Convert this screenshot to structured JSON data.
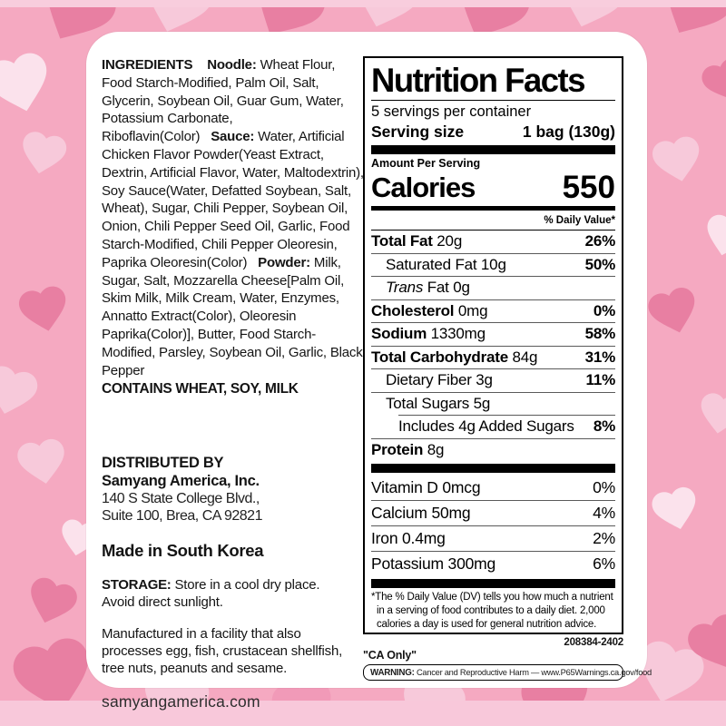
{
  "theme": {
    "background": "#f5a9c1",
    "heart_dark": "#e87fa2",
    "heart_medium": "#f19ab8",
    "heart_light": "#f7c9da",
    "heart_pale": "#fbe2ec",
    "label_bg": "#ffffff",
    "text": "#141414",
    "warning_yellow": "#f5c518"
  },
  "left_column": {
    "ingredients_segments": [
      {
        "t": "INGREDIENTS",
        "b": true
      },
      {
        "t": "    ",
        "b": false
      },
      {
        "t": "Noodle:",
        "b": true
      },
      {
        "t": " Wheat Flour, Food Starch-Modified, Palm Oil, Salt, Glycerin, Soybean Oil, Guar Gum, Water, Potassium Carbonate, Riboflavin(Color)",
        "b": false
      },
      {
        "t": "   ",
        "b": false
      },
      {
        "t": "Sauce:",
        "b": true
      },
      {
        "t": " Water, Artificial Chicken Flavor Powder(Yeast Extract, Dextrin, Artificial Flavor, Water, Maltodextrin), Soy Sauce(Water, Defatted Soybean, Salt, Wheat), Sugar, Chili Pepper, Soybean Oil, Onion, Chili Pepper Seed Oil, Garlic, Food Starch-Modified, Chili Pepper Oleoresin, Paprika Oleoresin(Color)",
        "b": false
      },
      {
        "t": "   ",
        "b": false
      },
      {
        "t": "Powder:",
        "b": true
      },
      {
        "t": " Milk, Sugar, Salt, Mozzarella Cheese[Palm Oil, Skim Milk, Milk Cream, Water, Enzymes, Annatto Extract(Color), Oleoresin Paprika(Color)], Butter, Food Starch-Modified, Parsley, Soybean Oil, Garlic, Black Pepper",
        "b": false
      }
    ],
    "contains": "CONTAINS WHEAT, SOY, MILK",
    "distributed_by_label": "DISTRIBUTED BY",
    "distributor_name": "Samyang America, Inc.",
    "address_line1": "140 S State College Blvd.,",
    "address_line2": "Suite 100, Brea, CA 92821",
    "made_in": "Made in South Korea",
    "storage_label": "STORAGE:",
    "storage_line1": " Store in a cool dry place.",
    "storage_line2": "Avoid direct sunlight.",
    "manufactured": "Manufactured in a facility that also processes egg, fish, crustacean shellfish, tree nuts, peanuts and sesame.",
    "website": "samyangamerica.com"
  },
  "nutrition": {
    "title": "Nutrition Facts",
    "servings_per_container": "5 servings per container",
    "serving_size_label": "Serving size",
    "serving_size_value": "1 bag (130g)",
    "amount_per_serving": "Amount Per Serving",
    "calories_label": "Calories",
    "calories_value": "550",
    "daily_value_header": "% Daily Value*",
    "rows": [
      {
        "name": "Total Fat",
        "amount": "20g",
        "dv": "26%",
        "bold": true,
        "indent": 0,
        "italic": false
      },
      {
        "name": "Saturated Fat",
        "amount": "10g",
        "dv": "50%",
        "bold": false,
        "indent": 1,
        "italic": false
      },
      {
        "name": "Trans Fat",
        "amount": "0g",
        "dv": "",
        "bold": false,
        "indent": 1,
        "italic": true
      },
      {
        "name": "Cholesterol",
        "amount": "0mg",
        "dv": "0%",
        "bold": true,
        "indent": 0,
        "italic": false
      },
      {
        "name": "Sodium",
        "amount": "1330mg",
        "dv": "58%",
        "bold": true,
        "indent": 0,
        "italic": false
      },
      {
        "name": "Total Carbohydrate",
        "amount": "84g",
        "dv": "31%",
        "bold": true,
        "indent": 0,
        "italic": false
      },
      {
        "name": "Dietary Fiber",
        "amount": "3g",
        "dv": "11%",
        "bold": false,
        "indent": 1,
        "italic": false
      },
      {
        "name": "Total Sugars",
        "amount": "5g",
        "dv": "",
        "bold": false,
        "indent": 1,
        "italic": false
      },
      {
        "name": "Includes 4g Added Sugars",
        "amount": "",
        "dv": "8%",
        "bold": false,
        "indent": 2,
        "italic": false
      },
      {
        "name": "Protein",
        "amount": "8g",
        "dv": "",
        "bold": true,
        "indent": 0,
        "italic": false
      }
    ],
    "micronutrients": [
      {
        "name": "Vitamin D",
        "amount": "0mcg",
        "dv": "0%"
      },
      {
        "name": "Calcium",
        "amount": "50mg",
        "dv": "4%"
      },
      {
        "name": "Iron",
        "amount": "0.4mg",
        "dv": "2%"
      },
      {
        "name": "Potassium",
        "amount": "300mg",
        "dv": "6%"
      }
    ],
    "footnote": "*The % Daily Value (DV) tells you how much a nutrient in a serving of food contributes to a daily diet. 2,000 calories a day is used for general nutrition advice."
  },
  "footer": {
    "product_code": "208384-2402",
    "ca_only": "\"CA Only\"",
    "warning_label": "WARNING:",
    "warning_text": " Cancer and Reproductive Harm — www.P65Warnings.ca.gov/food"
  }
}
